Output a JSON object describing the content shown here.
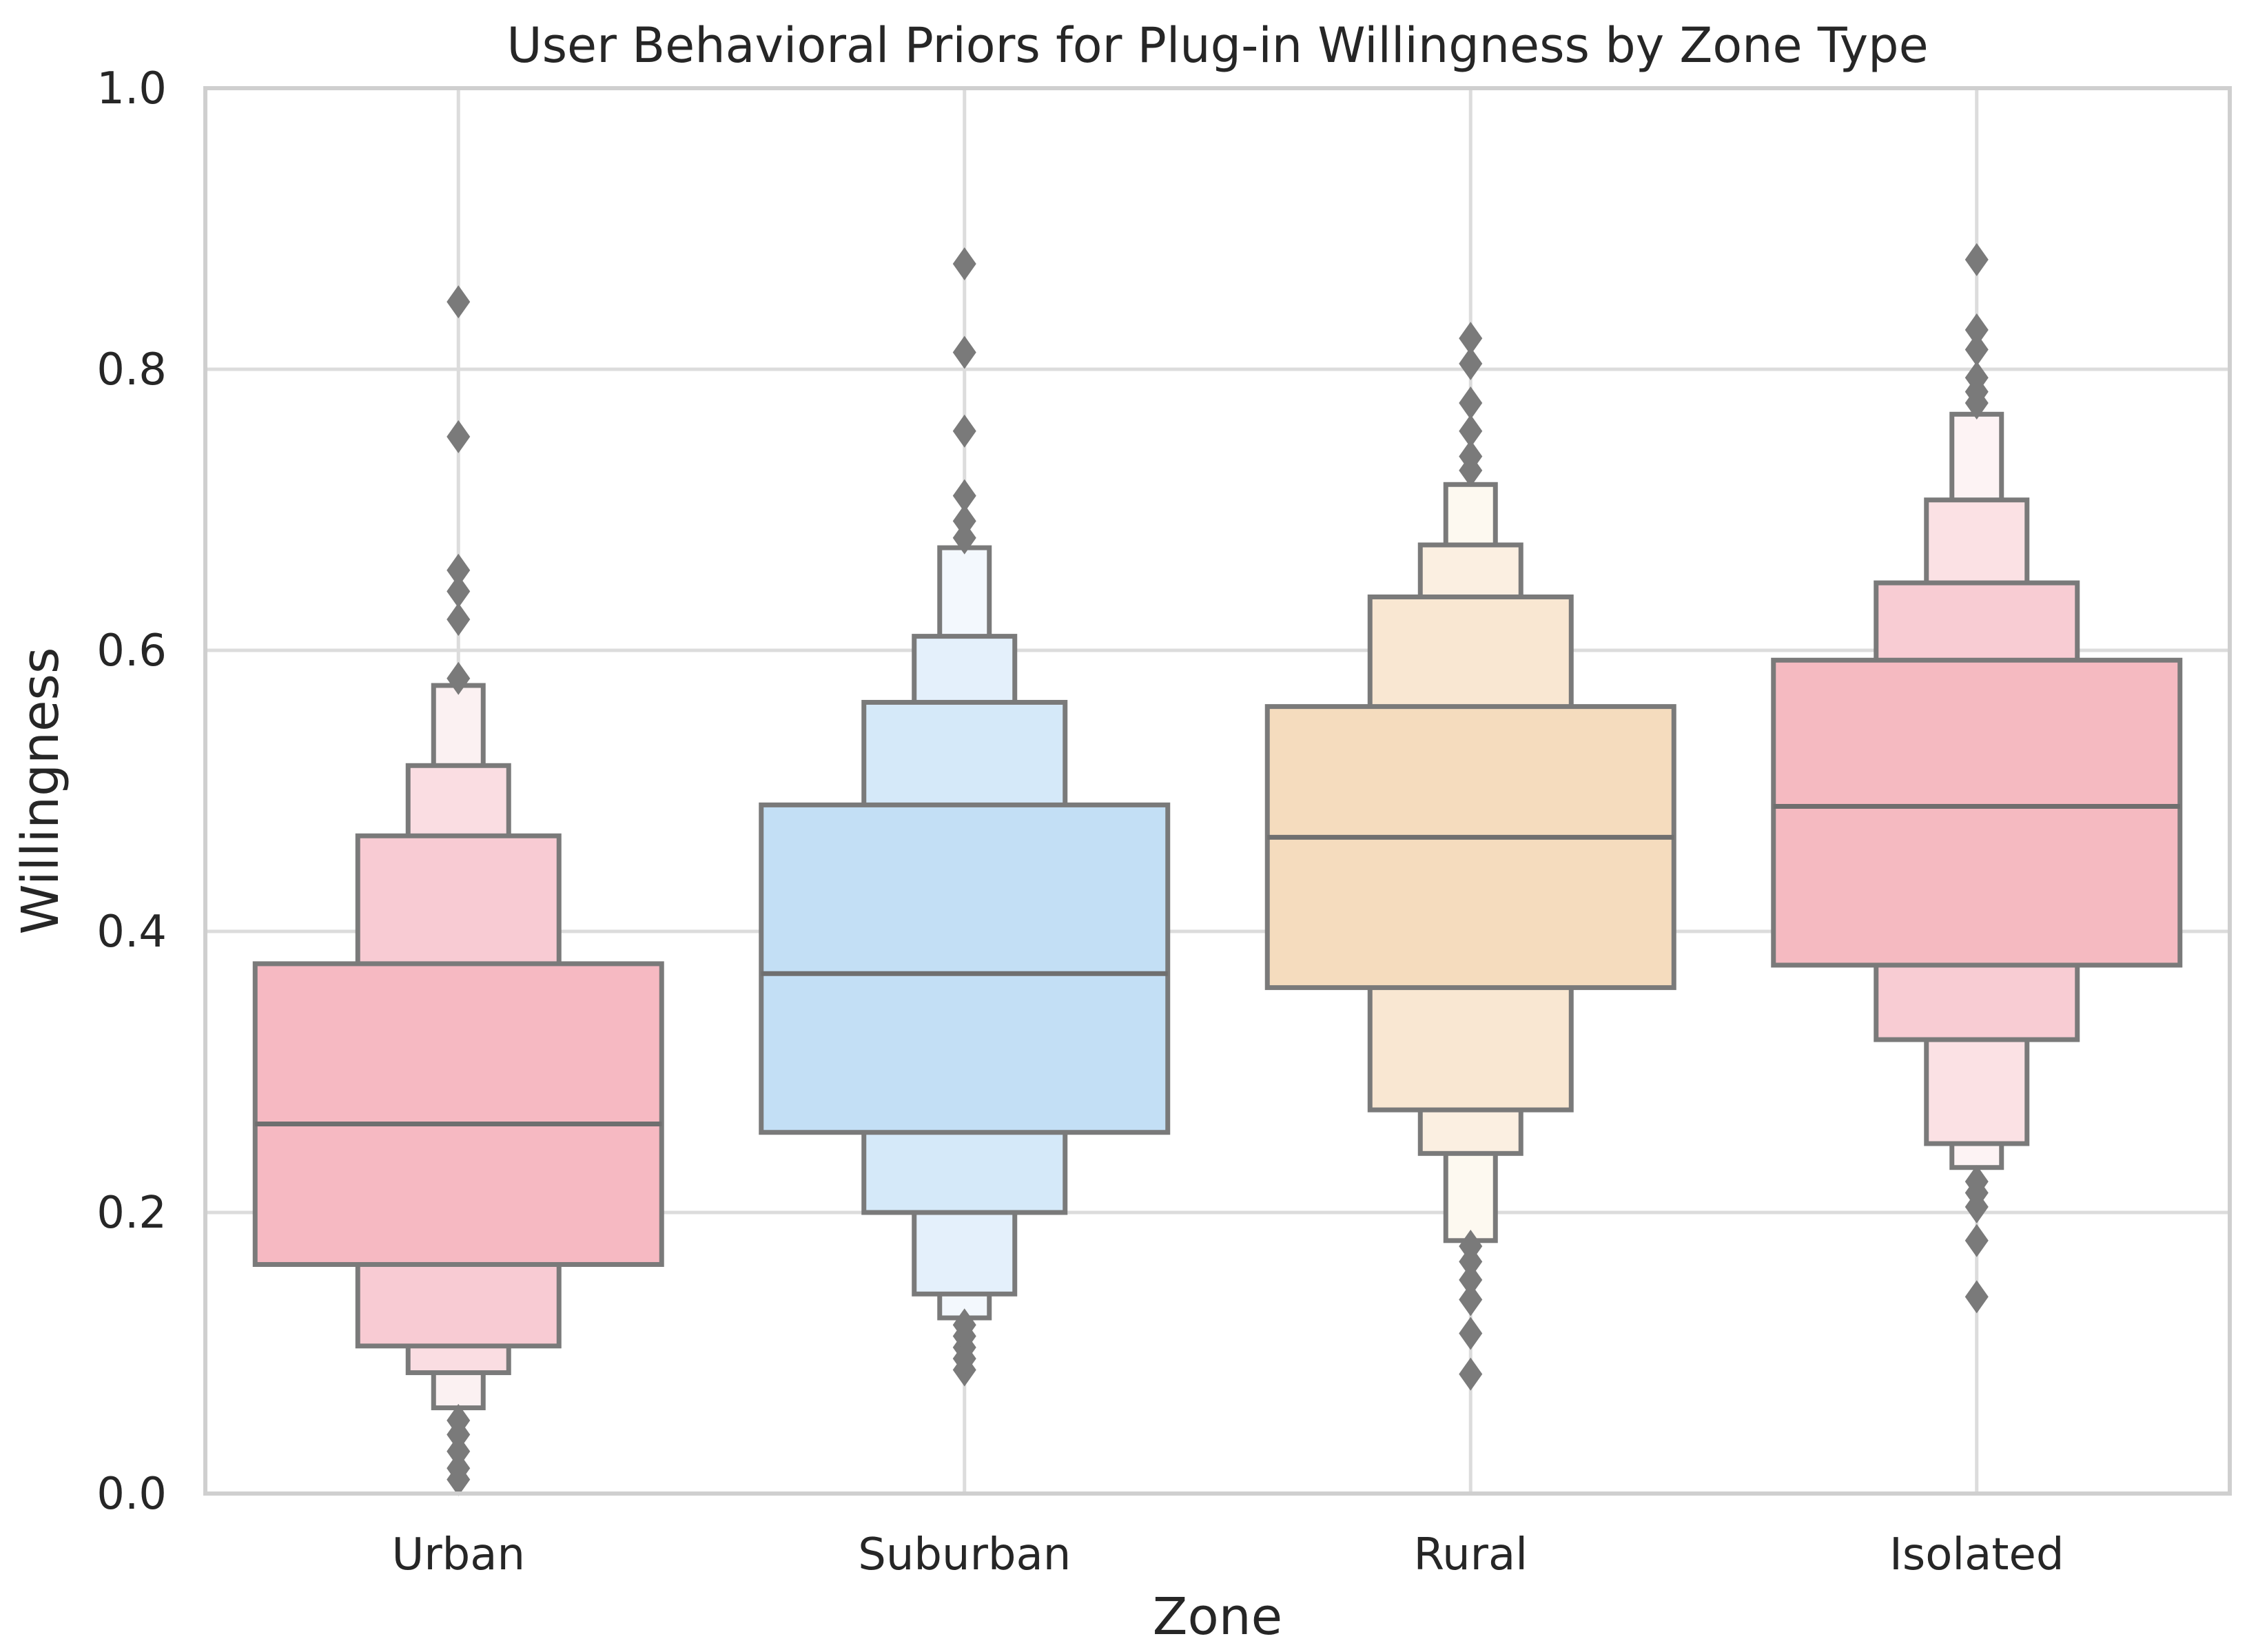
{
  "chart_data": {
    "type": "boxen",
    "title": "User Behavioral Priors for Plug-in Willingness by Zone Type",
    "xlabel": "Zone",
    "ylabel": "Willingness",
    "ylim": [
      0.0,
      1.0
    ],
    "yticks": [
      0.0,
      0.2,
      0.4,
      0.6,
      0.8,
      1.0
    ],
    "ytick_labels": [
      "0.0",
      "0.2",
      "0.4",
      "0.6",
      "0.8",
      "1.0"
    ],
    "grid": true,
    "categories": [
      "Urban",
      "Suburban",
      "Rural",
      "Isolated"
    ],
    "series": [
      {
        "name": "Urban",
        "color": "#f6b9c2",
        "median": 0.263,
        "boxes": [
          {
            "low": 0.163,
            "high": 0.377,
            "color": "#f6b9c2"
          },
          {
            "low": 0.105,
            "high": 0.468,
            "color": "#f8cbd3"
          },
          {
            "low": 0.086,
            "high": 0.518,
            "color": "#fadde2"
          },
          {
            "low": 0.061,
            "high": 0.575,
            "color": "#fbf1f2"
          }
        ],
        "fliers": [
          0.01,
          0.018,
          0.03,
          0.042,
          0.052,
          0.58,
          0.622,
          0.642,
          0.657,
          0.752,
          0.848
        ]
      },
      {
        "name": "Suburban",
        "color": "#c3dff5",
        "median": 0.37,
        "boxes": [
          {
            "low": 0.257,
            "high": 0.49,
            "color": "#c3dff5"
          },
          {
            "low": 0.2,
            "high": 0.563,
            "color": "#d5e9f9"
          },
          {
            "low": 0.142,
            "high": 0.61,
            "color": "#e4f0fb"
          },
          {
            "low": 0.125,
            "high": 0.673,
            "color": "#f3f8fd"
          }
        ],
        "fliers": [
          0.088,
          0.096,
          0.104,
          0.112,
          0.12,
          0.68,
          0.692,
          0.71,
          0.756,
          0.812,
          0.875
        ]
      },
      {
        "name": "Rural",
        "color": "#f5dcbe",
        "median": 0.467,
        "boxes": [
          {
            "low": 0.36,
            "high": 0.56,
            "color": "#f5dcbe"
          },
          {
            "low": 0.273,
            "high": 0.638,
            "color": "#f9e7d2"
          },
          {
            "low": 0.242,
            "high": 0.675,
            "color": "#fbefe1"
          },
          {
            "low": 0.18,
            "high": 0.718,
            "color": "#fdf9f0"
          }
        ],
        "fliers": [
          0.085,
          0.114,
          0.138,
          0.152,
          0.165,
          0.176,
          0.728,
          0.738,
          0.756,
          0.776,
          0.804,
          0.822
        ]
      },
      {
        "name": "Isolated",
        "color": "#f5bac1",
        "median": 0.489,
        "boxes": [
          {
            "low": 0.376,
            "high": 0.593,
            "color": "#f5bac1"
          },
          {
            "low": 0.323,
            "high": 0.648,
            "color": "#f8ccd3"
          },
          {
            "low": 0.249,
            "high": 0.707,
            "color": "#fbe1e4"
          },
          {
            "low": 0.232,
            "high": 0.768,
            "color": "#fdf3f4"
          }
        ],
        "fliers": [
          0.14,
          0.18,
          0.204,
          0.214,
          0.222,
          0.776,
          0.784,
          0.794,
          0.814,
          0.828,
          0.878
        ]
      }
    ]
  }
}
